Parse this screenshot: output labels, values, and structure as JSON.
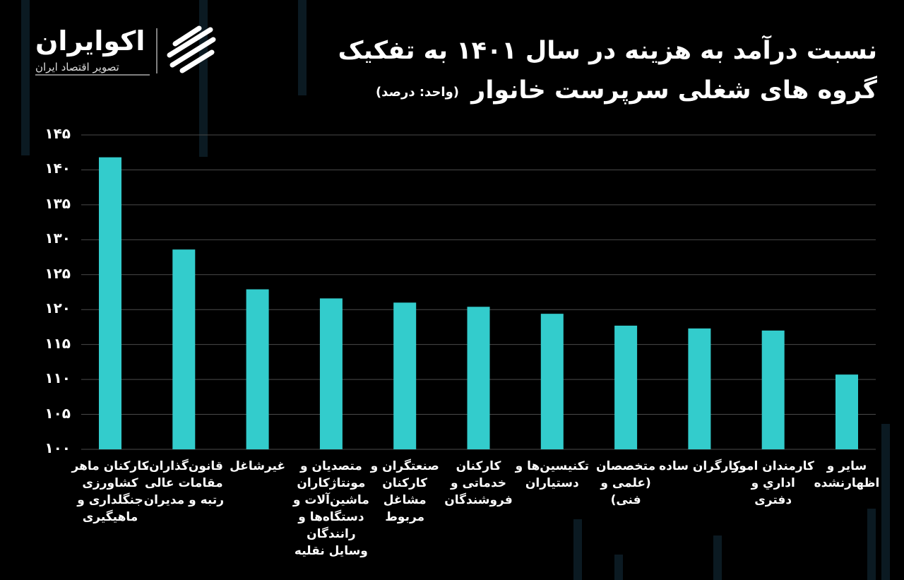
{
  "logo": {
    "name": "اکوایران",
    "tagline": "تصویر اقتصاد ایران"
  },
  "chart_data": {
    "type": "bar",
    "title": [
      "نسبت درآمد به هزینه در سال ۱۴۰۱ به تفکیک",
      "گروه های شغلی سرپرست خانوار"
    ],
    "unit": "(واحد: درصد)",
    "categories": [
      "کارکنان ماهر کشاورزی جنگلداری و ماهیگیری",
      "قانون‌گذاران، مقامات عالی رتبه و مدیران",
      "غیرشاغل",
      "متصدیان و مونتاژکاران ماشین‌آلات و دستگاه‌ها و رانندگان وسایل نقلیه",
      "صنعتگران و کارکنان مشاغل مربوط",
      "کارکنان خدماتی و فروشندگان",
      "تکنیسین‌ها و دستیاران",
      "متخصصان (علمی و فنی)",
      "کارگران ساده",
      "کارمندان امور اداري و دفتری",
      "سایر و اظهارنشده"
    ],
    "values": [
      141.8,
      128.6,
      122.9,
      121.6,
      121.0,
      120.4,
      119.4,
      117.7,
      117.3,
      117.0,
      110.7
    ],
    "color": "#33cccc",
    "ylim": [
      100,
      145
    ],
    "yticks": [
      {
        "value": 100,
        "label": "۱۰۰"
      },
      {
        "value": 105,
        "label": "۱۰۵"
      },
      {
        "value": 110,
        "label": "۱۱۰"
      },
      {
        "value": 115,
        "label": "۱۱۵"
      },
      {
        "value": 120,
        "label": "۱۲۰"
      },
      {
        "value": 125,
        "label": "۱۲۵"
      },
      {
        "value": 130,
        "label": "۱۳۰"
      },
      {
        "value": 135,
        "label": "۱۳۵"
      },
      {
        "value": 140,
        "label": "۱۴۰"
      },
      {
        "value": 145,
        "label": "۱۴۵"
      }
    ],
    "grid": true
  }
}
